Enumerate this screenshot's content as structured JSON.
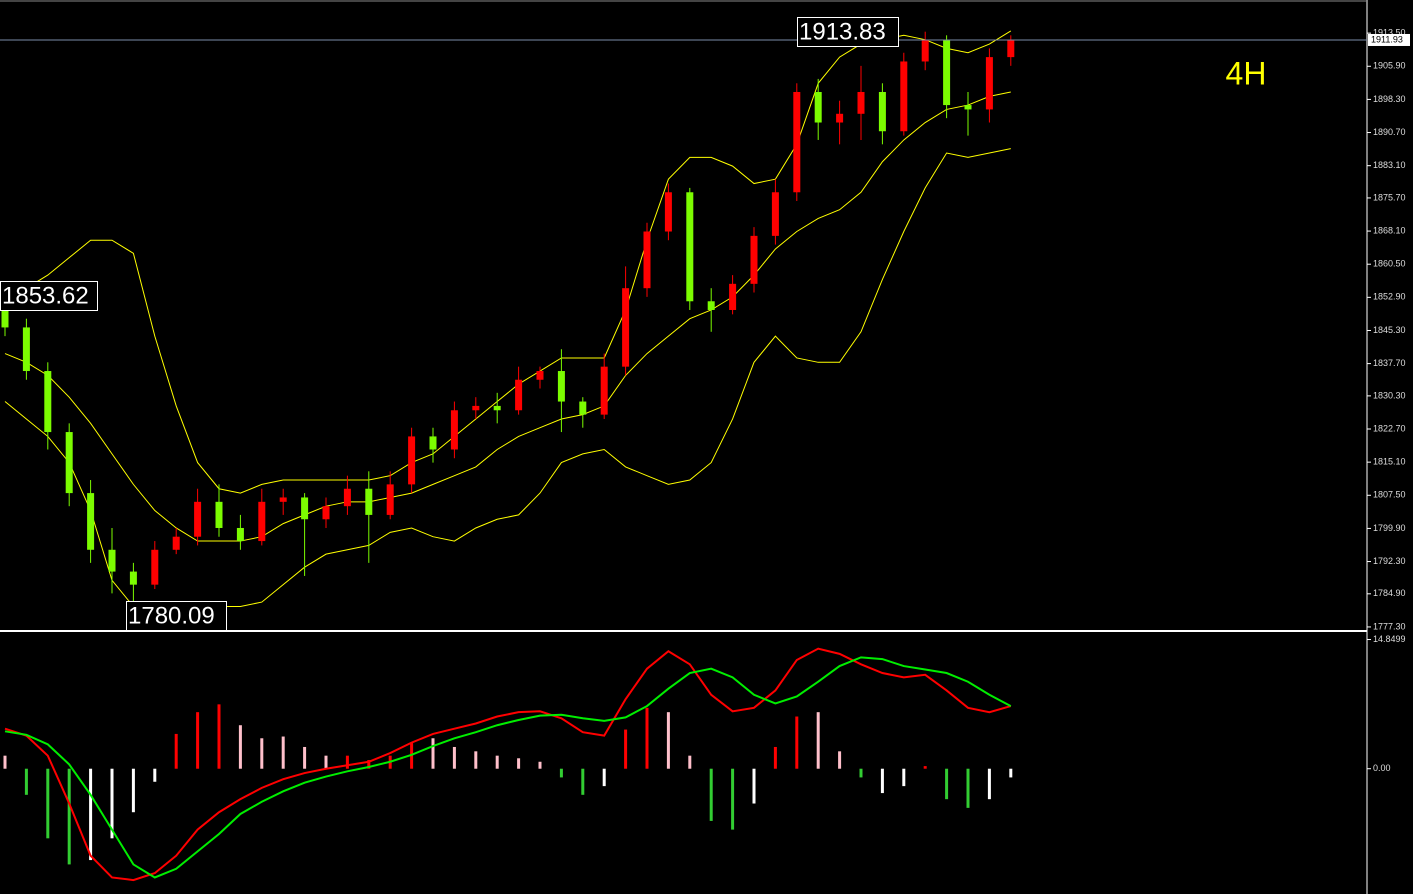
{
  "chart_data": [
    {
      "type": "candlestick",
      "timeframe": "4H",
      "open": [
        1850,
        1846,
        1836,
        1822,
        1808,
        1795,
        1790,
        1787,
        1795,
        1798,
        1806,
        1800,
        1797,
        1806,
        1807,
        1802,
        1805,
        1809,
        1803,
        1810,
        1821,
        1818,
        1827,
        1828,
        1827,
        1834,
        1836,
        1829,
        1826,
        1837,
        1855,
        1868,
        1877,
        1852,
        1850,
        1856,
        1867,
        1877,
        1900,
        1893,
        1895,
        1900,
        1891,
        1907,
        1912,
        1897,
        1896,
        1908
      ],
      "high": [
        1853.62,
        1848,
        1838,
        1824,
        1811,
        1800,
        1792,
        1797,
        1800,
        1809,
        1810,
        1803,
        1809,
        1809,
        1808,
        1807,
        1812,
        1813,
        1813,
        1823,
        1823,
        1829,
        1830,
        1831,
        1837,
        1837,
        1841,
        1830,
        1840,
        1860,
        1870,
        1879,
        1878,
        1855,
        1858,
        1869,
        1880,
        1902,
        1903,
        1898,
        1906,
        1902,
        1909,
        1913.83,
        1913,
        1900,
        1910,
        1913
      ],
      "low": [
        1844,
        1834,
        1818,
        1805,
        1792,
        1785,
        1780.09,
        1786,
        1794,
        1796,
        1798,
        1795,
        1796,
        1803,
        1789,
        1800,
        1803,
        1792,
        1802,
        1808,
        1815,
        1816,
        1825,
        1824,
        1826,
        1832,
        1822,
        1823,
        1825,
        1835,
        1853,
        1866,
        1850,
        1845,
        1849,
        1854,
        1865,
        1875,
        1889,
        1888,
        1889,
        1888,
        1890,
        1905,
        1894,
        1890,
        1893,
        1906
      ],
      "close": [
        1846,
        1836,
        1822,
        1808,
        1795,
        1790,
        1787,
        1795,
        1798,
        1806,
        1800,
        1797,
        1806,
        1807,
        1802,
        1805,
        1809,
        1803,
        1810,
        1821,
        1818,
        1827,
        1828,
        1827,
        1834,
        1836,
        1829,
        1826,
        1837,
        1855,
        1868,
        1877,
        1852,
        1850,
        1856,
        1867,
        1877,
        1900,
        1893,
        1895,
        1900,
        1891,
        1907,
        1912,
        1897,
        1896,
        1908,
        1911.93
      ],
      "up_color": "#ff0000",
      "down_color": "#7cfc00",
      "bands": [
        {
          "color": "#ffff00",
          "values": [
            1852,
            1855,
            1858,
            1862,
            1866,
            1866,
            1863,
            1844,
            1828,
            1815,
            1809,
            1808,
            1810,
            1811,
            1811,
            1811,
            1811,
            1811,
            1812,
            1815,
            1817,
            1821,
            1825,
            1829,
            1833,
            1836,
            1839,
            1839,
            1839,
            1850,
            1866,
            1880,
            1885,
            1885,
            1883,
            1879,
            1880,
            1888,
            1902,
            1908,
            1911,
            1912,
            1913,
            1912,
            1910,
            1909,
            1911,
            1914
          ]
        },
        {
          "color": "#ffff00",
          "values": [
            1840,
            1838,
            1835,
            1830,
            1824,
            1817,
            1810,
            1804,
            1800,
            1797,
            1797,
            1797,
            1798,
            1801,
            1803,
            1805,
            1806,
            1806,
            1807,
            1808,
            1810,
            1812,
            1814,
            1818,
            1821,
            1823,
            1825,
            1826,
            1828,
            1835,
            1840,
            1844,
            1848,
            1850,
            1853,
            1858,
            1864,
            1868,
            1871,
            1873,
            1877,
            1884,
            1889,
            1893,
            1896,
            1897,
            1899,
            1900
          ]
        },
        {
          "color": "#ffff00",
          "values": [
            1829,
            1825,
            1821,
            1815,
            1804,
            1788,
            1782,
            1782,
            1782,
            1782,
            1782,
            1782,
            1783,
            1787,
            1791,
            1794,
            1795,
            1796,
            1799,
            1800,
            1798,
            1797,
            1800,
            1802,
            1803,
            1808,
            1815,
            1817,
            1818,
            1814,
            1812,
            1810,
            1811,
            1815,
            1825,
            1838,
            1844,
            1839,
            1838,
            1838,
            1845,
            1857,
            1868,
            1878,
            1886,
            1885,
            1886,
            1887
          ]
        }
      ],
      "annotations": [
        1853.62,
        1913.83,
        1780.09
      ],
      "current_price": 1911.93,
      "ylim": [
        1776.6,
        1921.1
      ],
      "yticks": [
        {
          "value": 1913.5,
          "label": "1913.50"
        },
        {
          "value": 1905.9,
          "label": "1905.90"
        },
        {
          "value": 1898.3,
          "label": "1898.30"
        },
        {
          "value": 1890.7,
          "label": "1890.70"
        },
        {
          "value": 1883.1,
          "label": "1883.10"
        },
        {
          "value": 1875.7,
          "label": "1875.70"
        },
        {
          "value": 1868.1,
          "label": "1868.10"
        },
        {
          "value": 1860.5,
          "label": "1860.50"
        },
        {
          "value": 1852.9,
          "label": "1852.90"
        },
        {
          "value": 1845.3,
          "label": "1845.30"
        },
        {
          "value": 1837.7,
          "label": "1837.70"
        },
        {
          "value": 1830.3,
          "label": "1830.30"
        },
        {
          "value": 1822.7,
          "label": "1822.70"
        },
        {
          "value": 1815.1,
          "label": "1815.10"
        },
        {
          "value": 1807.5,
          "label": "1807.50"
        },
        {
          "value": 1799.9,
          "label": "1799.90"
        },
        {
          "value": 1792.3,
          "label": "1792.30"
        },
        {
          "value": 1784.9,
          "label": "1784.90"
        },
        {
          "value": 1777.3,
          "label": "1777.30"
        }
      ]
    },
    {
      "type": "macd",
      "values": [
        1.5,
        -3,
        -8,
        -11,
        -10.5,
        -8,
        -5,
        -1.5,
        4,
        6.5,
        7.4,
        5,
        3.5,
        3.7,
        2.5,
        1.5,
        1.5,
        1,
        1.5,
        3,
        3.5,
        2.5,
        2,
        1.5,
        1.2,
        0.8,
        -1,
        -3,
        -2,
        4.5,
        7,
        6.5,
        1.5,
        -6,
        -7,
        -4,
        2.5,
        6,
        6.5,
        2,
        -1,
        -2.8,
        -2,
        0.3,
        -3.5,
        -4.5,
        -3.5,
        -1
      ],
      "colors": [
        "#ffc0cb",
        "#32cd32",
        "#32cd32",
        "#32cd32",
        "#ffffff",
        "#ffffff",
        "#ffffff",
        "#ffffff",
        "#ff0000",
        "#ff0000",
        "#ff0000",
        "#ffc0cb",
        "#ffc0cb",
        "#ffc0cb",
        "#ffc0cb",
        "#ffc0cb",
        "#ff0000",
        "#ff0000",
        "#ff0000",
        "#ff0000",
        "#ffc0cb",
        "#ffc0cb",
        "#ffc0cb",
        "#ffc0cb",
        "#ffc0cb",
        "#ffc0cb",
        "#32cd32",
        "#32cd32",
        "#ffffff",
        "#ff0000",
        "#ff0000",
        "#ffc0cb",
        "#ffc0cb",
        "#32cd32",
        "#32cd32",
        "#ffffff",
        "#ff0000",
        "#ff0000",
        "#ffc0cb",
        "#ffc0cb",
        "#32cd32",
        "#ffffff",
        "#ffffff",
        "#ff0000",
        "#32cd32",
        "#32cd32",
        "#ffffff",
        "#ffffff"
      ],
      "lines": [
        {
          "color": "#ff0000",
          "values": [
            4.6,
            3.8,
            1.5,
            -4,
            -10,
            -12.5,
            -12.8,
            -12,
            -10,
            -7,
            -5,
            -3.5,
            -2.2,
            -1.2,
            -0.5,
            0,
            0.4,
            0.8,
            1.8,
            3,
            4,
            4.6,
            5.2,
            6,
            6.5,
            6.6,
            5.8,
            4.2,
            3.8,
            8,
            11.5,
            13.5,
            12,
            8.5,
            6.6,
            7,
            9,
            12.5,
            13.8,
            13.2,
            12,
            11,
            10.5,
            10.8,
            9,
            7,
            6.5,
            7.2
          ]
        },
        {
          "color": "#00ee00",
          "values": [
            4.3,
            3.9,
            2.8,
            0.5,
            -3,
            -7,
            -11,
            -12.5,
            -11.5,
            -9.5,
            -7.5,
            -5.2,
            -3.8,
            -2.6,
            -1.6,
            -0.9,
            -0.3,
            0.2,
            0.8,
            1.6,
            2.6,
            3.5,
            4.2,
            5,
            5.6,
            6.1,
            6.2,
            5.8,
            5.5,
            5.9,
            7.2,
            9.2,
            11,
            11.5,
            10.5,
            8.5,
            7.5,
            8.3,
            10,
            11.8,
            12.8,
            12.6,
            11.8,
            11.4,
            11,
            10,
            8.5,
            7.2
          ]
        }
      ],
      "ylim": [
        -14.4,
        15.6
      ],
      "yticks": [
        14.8499,
        {
          "value": 0,
          "label": "0.00"
        }
      ]
    }
  ]
}
